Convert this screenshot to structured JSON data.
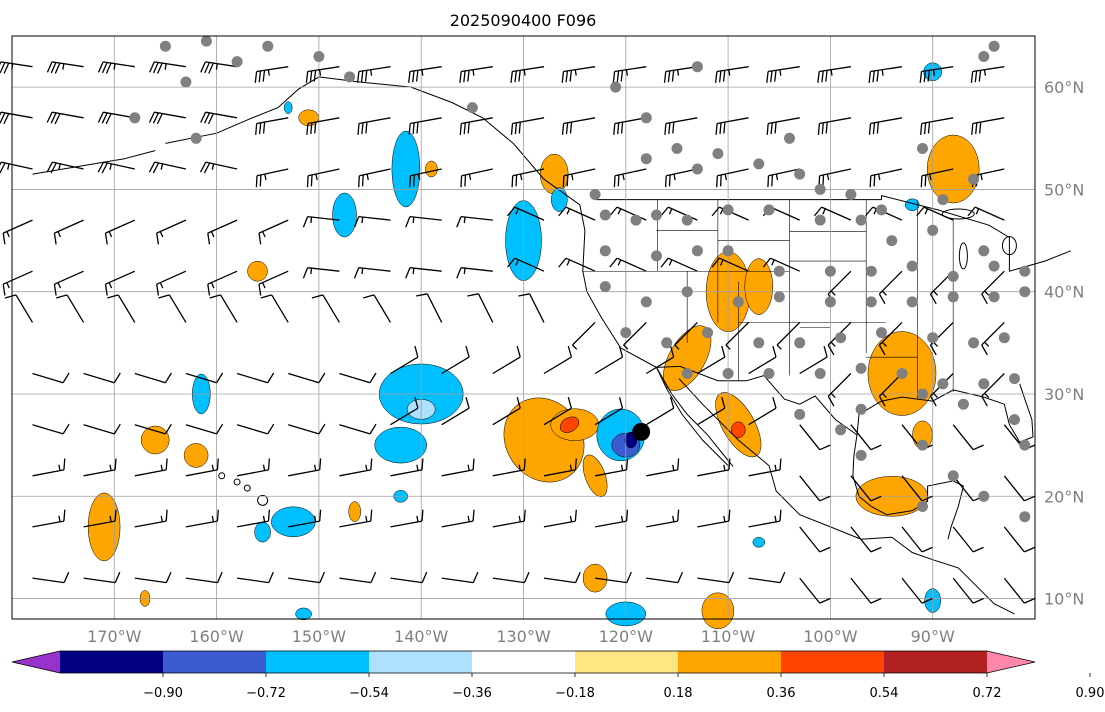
{
  "title": "2025090400 F096",
  "map": {
    "projection": "PlateCarree",
    "lon_range": [
      -180,
      -80
    ],
    "lat_range": [
      8,
      65
    ],
    "gridlines": true,
    "lat_labels": [
      "60°N",
      "50°N",
      "40°N",
      "30°N",
      "20°N",
      "10°N"
    ],
    "lon_labels": [
      "170°W",
      "160°W",
      "150°W",
      "140°W",
      "130°W",
      "120°W",
      "110°W",
      "100°W",
      "90°W"
    ],
    "grid_color": "#a0a0a0",
    "label_color": "#808080"
  },
  "colorbar": {
    "orientation": "horizontal",
    "extend": "both",
    "tick_labels": [
      "−0.90",
      "−0.72",
      "−0.54",
      "−0.36",
      "−0.18",
      "0.18",
      "0.36",
      "0.54",
      "0.72",
      "0.90"
    ],
    "colors": [
      "#9932cc",
      "#000080",
      "#3b5bd0",
      "#00bfff",
      "#aee0ff",
      "#ffffff",
      "#ffe680",
      "#ffa500",
      "#ff4500",
      "#b22222",
      "#ff88aa"
    ]
  },
  "layers": {
    "wind_barbs": "black",
    "station_markers": "#808080",
    "highlight_marker": "black"
  }
}
